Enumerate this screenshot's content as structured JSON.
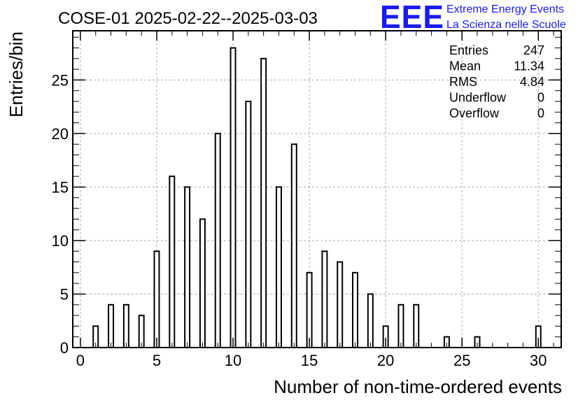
{
  "chart_data": {
    "type": "bar",
    "title": "COSE-01 2025-02-22--2025-03-03",
    "xlabel": "Number of non-time-ordered events",
    "ylabel": "Entries/bin",
    "xlim": [
      -0.5,
      31.5
    ],
    "ylim": [
      0,
      29.6
    ],
    "x_ticks": [
      0,
      5,
      10,
      15,
      20,
      25,
      30
    ],
    "y_ticks": [
      0,
      5,
      10,
      15,
      20,
      25
    ],
    "grid": true,
    "bins": [
      0,
      1,
      2,
      3,
      4,
      5,
      6,
      7,
      8,
      9,
      10,
      11,
      12,
      13,
      14,
      15,
      16,
      17,
      18,
      19,
      20,
      21,
      22,
      23,
      24,
      25,
      26,
      27,
      28,
      29,
      30
    ],
    "values": [
      0,
      2,
      4,
      4,
      3,
      9,
      16,
      15,
      12,
      20,
      28,
      23,
      27,
      15,
      19,
      7,
      9,
      8,
      7,
      5,
      2,
      4,
      4,
      0,
      1,
      0,
      1,
      0,
      0,
      0,
      2
    ],
    "stats": {
      "placement": "top-right",
      "rows": [
        {
          "label": "Entries",
          "value": "247"
        },
        {
          "label": "Mean",
          "value": "11.34"
        },
        {
          "label": "RMS",
          "value": "4.84"
        },
        {
          "label": "Underflow",
          "value": "0"
        },
        {
          "label": "Overflow",
          "value": "0"
        }
      ]
    },
    "colors": {
      "bars": "#000000",
      "grid": "#aaaaaa"
    }
  },
  "logo": {
    "text": "EEE",
    "line1": "Extreme Energy Events",
    "line2": "La Scienza nelle Scuole",
    "color": "#1a1aee"
  }
}
